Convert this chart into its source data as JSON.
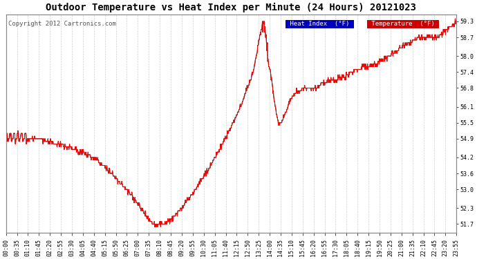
{
  "title": "Outdoor Temperature vs Heat Index per Minute (24 Hours) 20121023",
  "copyright": "Copyright 2012 Cartronics.com",
  "ylabel_right_ticks": [
    51.7,
    52.3,
    53.0,
    53.6,
    54.2,
    54.9,
    55.5,
    56.1,
    56.8,
    57.4,
    58.0,
    58.7,
    59.3
  ],
  "ylim": [
    51.38,
    59.56
  ],
  "x_tick_labels": [
    "00:00",
    "00:35",
    "01:10",
    "01:45",
    "02:20",
    "02:55",
    "03:30",
    "04:05",
    "04:40",
    "05:15",
    "05:50",
    "06:25",
    "07:00",
    "07:35",
    "08:10",
    "08:45",
    "09:20",
    "09:55",
    "10:30",
    "11:05",
    "11:40",
    "12:15",
    "12:50",
    "13:25",
    "14:00",
    "14:35",
    "15:10",
    "15:45",
    "16:20",
    "16:55",
    "17:30",
    "18:05",
    "18:40",
    "19:15",
    "19:50",
    "20:25",
    "21:00",
    "21:35",
    "22:10",
    "22:45",
    "23:20",
    "23:55"
  ],
  "n_points": 1440,
  "bg_color": "#ffffff",
  "grid_color": "#d0d0d0",
  "temp_color": "#ff0000",
  "heat_index_color": "#000000",
  "legend_heat_bg": "#0000bb",
  "legend_temp_bg": "#cc0000",
  "title_fontsize": 10,
  "copyright_fontsize": 6.5,
  "tick_fontsize": 6,
  "legend_fontsize": 6.5
}
